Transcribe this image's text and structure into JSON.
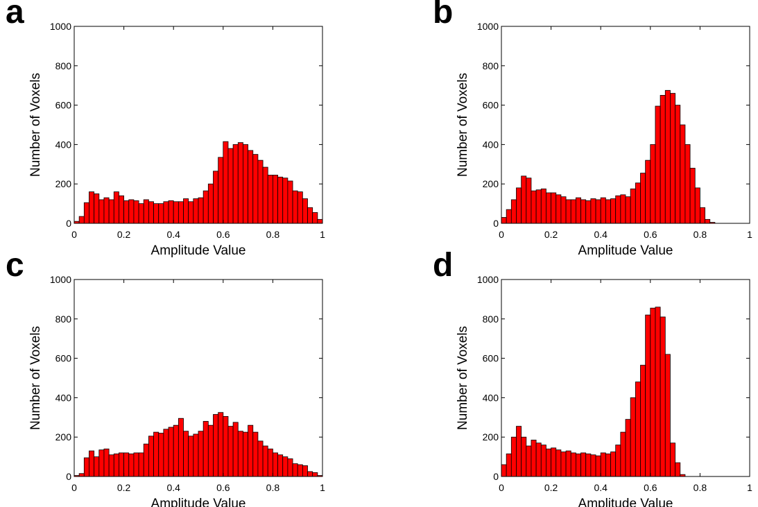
{
  "colors": {
    "bar_fill": "#ff0000",
    "bar_stroke": "#000000",
    "axes": "#000000"
  },
  "chart_data": [
    {
      "type": "bar",
      "panel_label": "a",
      "xlabel": "Amplitude Value",
      "ylabel": "Number of Voxels",
      "xlim": [
        0,
        1
      ],
      "ylim": [
        0,
        1000
      ],
      "xticks": [
        "0",
        "0.2",
        "0.4",
        "0.6",
        "0.8",
        "1"
      ],
      "yticks": [
        "0",
        "200",
        "400",
        "600",
        "800",
        "1000"
      ],
      "grid": false,
      "bin_width": 0.02,
      "x": [
        0.01,
        0.03,
        0.05,
        0.07,
        0.09,
        0.11,
        0.13,
        0.15,
        0.17,
        0.19,
        0.21,
        0.23,
        0.25,
        0.27,
        0.29,
        0.31,
        0.33,
        0.35,
        0.37,
        0.39,
        0.41,
        0.43,
        0.45,
        0.47,
        0.49,
        0.51,
        0.53,
        0.55,
        0.57,
        0.59,
        0.61,
        0.63,
        0.65,
        0.67,
        0.69,
        0.71,
        0.73,
        0.75,
        0.77,
        0.79,
        0.81,
        0.83,
        0.85,
        0.87,
        0.89,
        0.91,
        0.93,
        0.95,
        0.97,
        0.99
      ],
      "values": [
        10,
        35,
        105,
        160,
        150,
        120,
        130,
        120,
        160,
        140,
        115,
        120,
        115,
        100,
        120,
        110,
        100,
        100,
        110,
        115,
        110,
        110,
        125,
        110,
        125,
        130,
        165,
        200,
        265,
        335,
        415,
        380,
        400,
        410,
        400,
        370,
        350,
        320,
        285,
        245,
        245,
        235,
        230,
        215,
        165,
        160,
        125,
        80,
        55,
        20
      ]
    },
    {
      "type": "bar",
      "panel_label": "b",
      "xlabel": "Amplitude Value",
      "ylabel": "Number of Voxels",
      "xlim": [
        0,
        1
      ],
      "ylim": [
        0,
        1000
      ],
      "xticks": [
        "0",
        "0.2",
        "0.4",
        "0.6",
        "0.8",
        "1"
      ],
      "yticks": [
        "0",
        "200",
        "400",
        "600",
        "800",
        "1000"
      ],
      "grid": false,
      "bin_width": 0.02,
      "x": [
        0.01,
        0.03,
        0.05,
        0.07,
        0.09,
        0.11,
        0.13,
        0.15,
        0.17,
        0.19,
        0.21,
        0.23,
        0.25,
        0.27,
        0.29,
        0.31,
        0.33,
        0.35,
        0.37,
        0.39,
        0.41,
        0.43,
        0.45,
        0.47,
        0.49,
        0.51,
        0.53,
        0.55,
        0.57,
        0.59,
        0.61,
        0.63,
        0.65,
        0.67,
        0.69,
        0.71,
        0.73,
        0.75,
        0.77,
        0.79,
        0.81,
        0.83,
        0.85
      ],
      "values": [
        30,
        70,
        120,
        180,
        240,
        230,
        165,
        170,
        175,
        155,
        155,
        145,
        135,
        120,
        120,
        130,
        120,
        115,
        125,
        120,
        130,
        120,
        125,
        140,
        145,
        135,
        175,
        205,
        255,
        320,
        400,
        595,
        650,
        675,
        660,
        600,
        500,
        400,
        280,
        180,
        80,
        20,
        5
      ]
    },
    {
      "type": "bar",
      "panel_label": "c",
      "xlabel": "Amplitude Value",
      "ylabel": "Number of Voxels",
      "xlim": [
        0,
        1
      ],
      "ylim": [
        0,
        1000
      ],
      "xticks": [
        "0",
        "0.2",
        "0.4",
        "0.6",
        "0.8",
        "1"
      ],
      "yticks": [
        "0",
        "200",
        "400",
        "600",
        "800",
        "1000"
      ],
      "grid": false,
      "bin_width": 0.02,
      "x": [
        0.01,
        0.03,
        0.05,
        0.07,
        0.09,
        0.11,
        0.13,
        0.15,
        0.17,
        0.19,
        0.21,
        0.23,
        0.25,
        0.27,
        0.29,
        0.31,
        0.33,
        0.35,
        0.37,
        0.39,
        0.41,
        0.43,
        0.45,
        0.47,
        0.49,
        0.51,
        0.53,
        0.55,
        0.57,
        0.59,
        0.61,
        0.63,
        0.65,
        0.67,
        0.69,
        0.71,
        0.73,
        0.75,
        0.77,
        0.79,
        0.81,
        0.83,
        0.85,
        0.87,
        0.89,
        0.91,
        0.93,
        0.95,
        0.97,
        0.99
      ],
      "values": [
        5,
        15,
        95,
        130,
        100,
        135,
        140,
        110,
        115,
        120,
        120,
        115,
        120,
        120,
        165,
        205,
        225,
        220,
        240,
        250,
        260,
        295,
        230,
        205,
        215,
        230,
        280,
        260,
        315,
        325,
        305,
        255,
        275,
        230,
        225,
        260,
        225,
        180,
        155,
        140,
        120,
        110,
        100,
        90,
        65,
        60,
        55,
        25,
        20,
        5
      ]
    },
    {
      "type": "bar",
      "panel_label": "d",
      "xlabel": "Amplitude Value",
      "ylabel": "Number of Voxels",
      "xlim": [
        0,
        1
      ],
      "ylim": [
        0,
        1000
      ],
      "xticks": [
        "0",
        "0.2",
        "0.4",
        "0.6",
        "0.8",
        "1"
      ],
      "yticks": [
        "0",
        "200",
        "400",
        "600",
        "800",
        "1000"
      ],
      "grid": false,
      "bin_width": 0.02,
      "x": [
        0.01,
        0.03,
        0.05,
        0.07,
        0.09,
        0.11,
        0.13,
        0.15,
        0.17,
        0.19,
        0.21,
        0.23,
        0.25,
        0.27,
        0.29,
        0.31,
        0.33,
        0.35,
        0.37,
        0.39,
        0.41,
        0.43,
        0.45,
        0.47,
        0.49,
        0.51,
        0.53,
        0.55,
        0.57,
        0.59,
        0.61,
        0.63,
        0.65,
        0.67,
        0.69,
        0.71,
        0.73
      ],
      "values": [
        60,
        115,
        200,
        255,
        200,
        155,
        185,
        170,
        160,
        140,
        145,
        135,
        125,
        130,
        120,
        115,
        120,
        115,
        110,
        105,
        120,
        115,
        125,
        160,
        225,
        290,
        400,
        480,
        565,
        820,
        855,
        860,
        810,
        620,
        170,
        70,
        10
      ]
    }
  ]
}
